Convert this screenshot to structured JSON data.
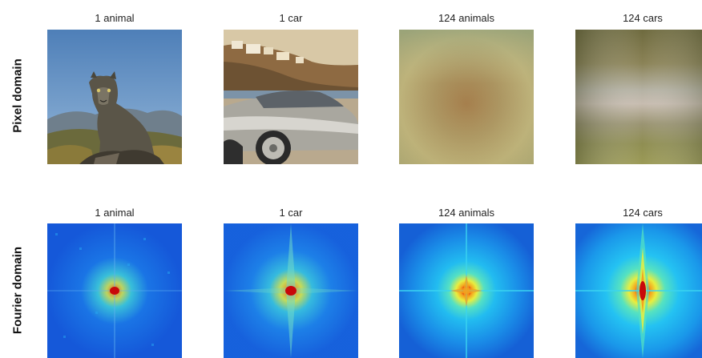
{
  "row_labels": {
    "pixel": "Pixel domain",
    "fourier": "Fourier domain"
  },
  "columns": [
    {
      "title": "1 animal"
    },
    {
      "title": "1 car"
    },
    {
      "title": "124 animals"
    },
    {
      "title": "124 cars"
    }
  ],
  "colors": {
    "sky_blue": "#5f8fc4",
    "puma_gray": "#5d5a4e",
    "car_silver": "#b9b6ab",
    "average_tan": "#b3a56a",
    "fourier_blue": "#1457d8",
    "fourier_cyan": "#29c8f2",
    "fourier_yellow": "#f2e635",
    "fourier_red": "#d8100e"
  }
}
